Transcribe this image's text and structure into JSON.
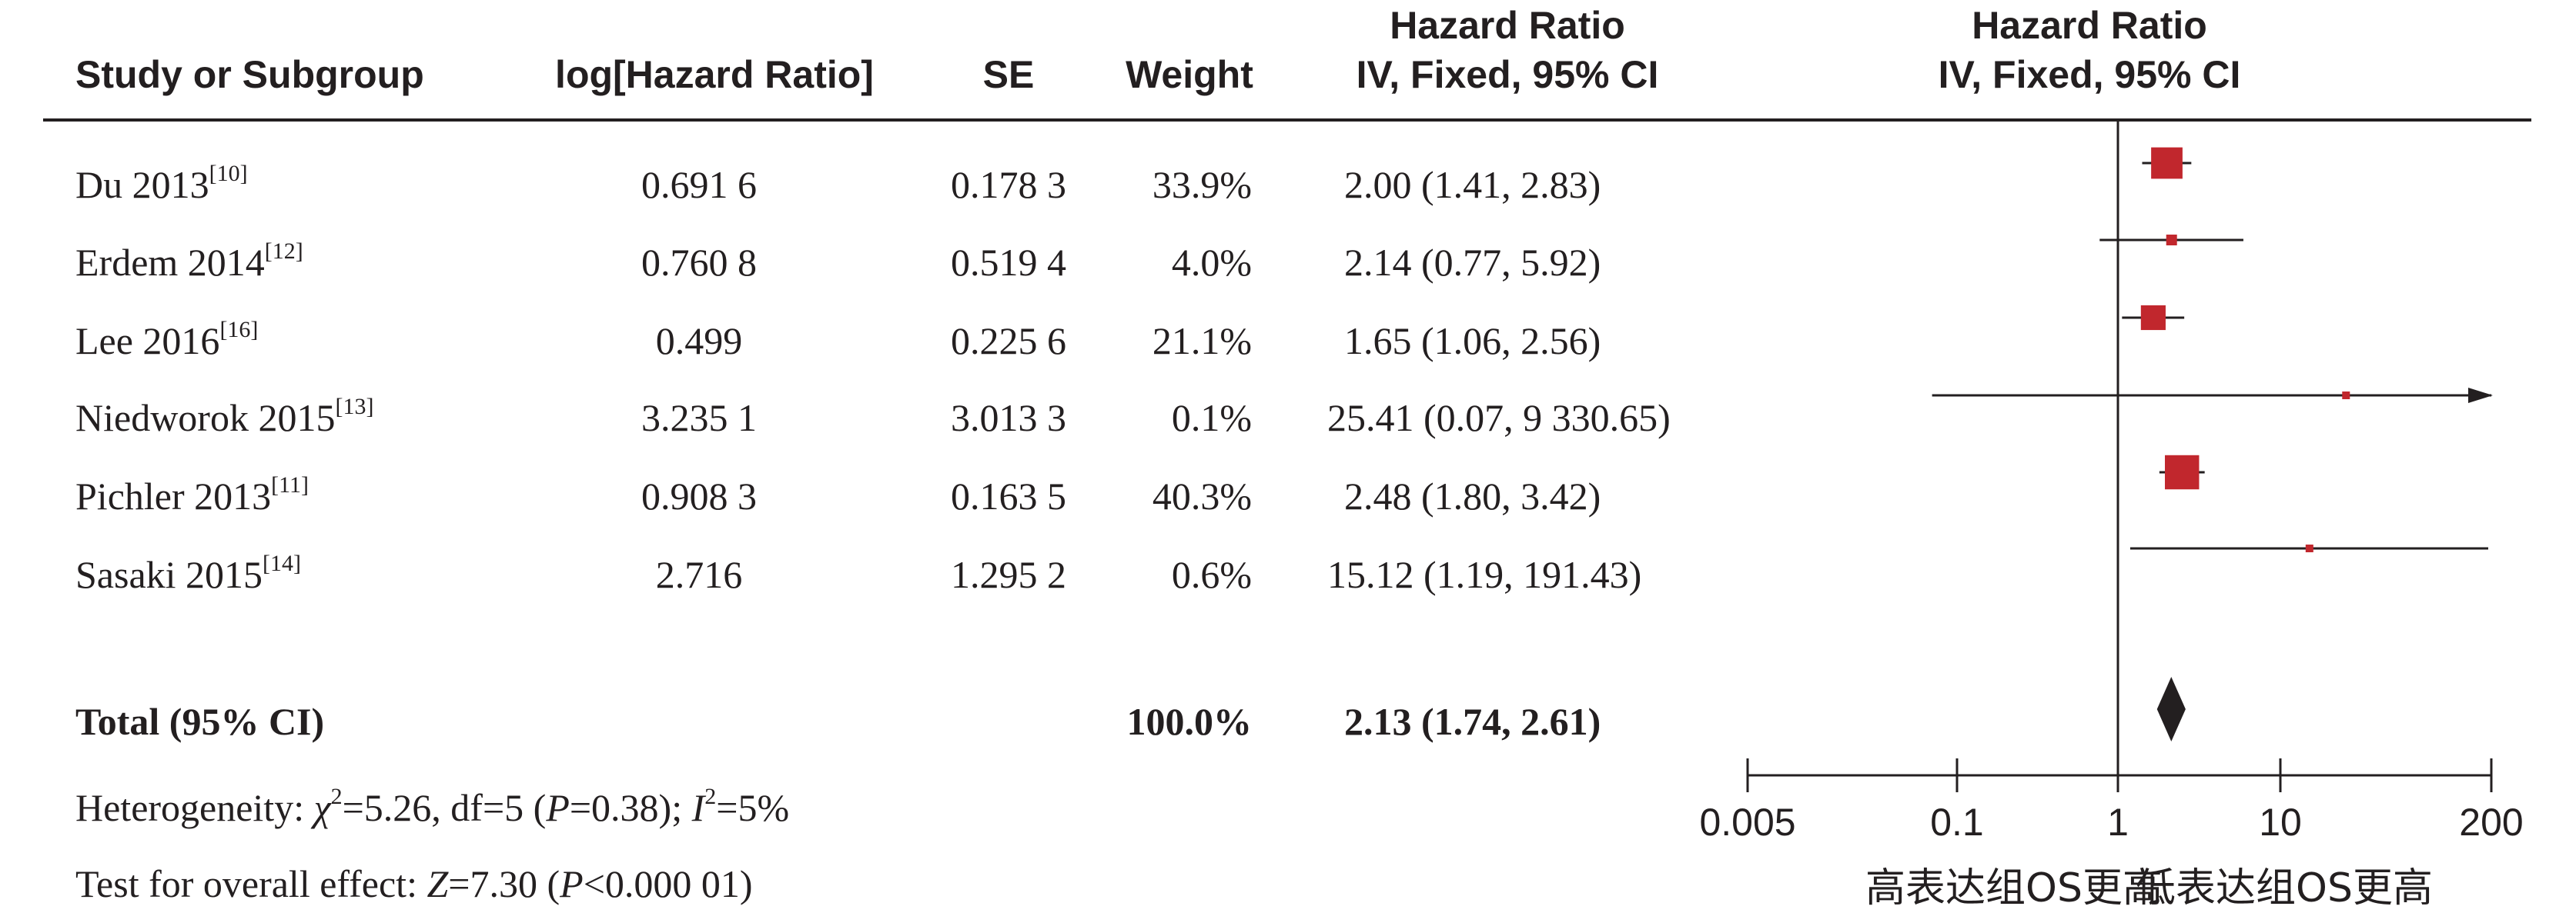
{
  "headers": {
    "study": "Study or Subgroup",
    "log_hr": "log[Hazard Ratio]",
    "se": "SE",
    "weight": "Weight",
    "hr_title": "Hazard Ratio",
    "hr_method": "IV, Fixed, 95% CI",
    "plot_title": "Hazard Ratio",
    "plot_method": "IV, Fixed, 95% CI"
  },
  "studies": [
    {
      "name": "Du 2013",
      "ref": "[10]",
      "log_hr": "0.691 6",
      "se": "0.178 3",
      "weight": "33.9%",
      "ci_text": "2.00 (1.41, 2.83)"
    },
    {
      "name": "Erdem 2014",
      "ref": "[12]",
      "log_hr": "0.760 8",
      "se": "0.519 4",
      "weight": "4.0%",
      "ci_text": "2.14 (0.77, 5.92)"
    },
    {
      "name": "Lee 2016",
      "ref": "[16]",
      "log_hr": "0.499",
      "se": "0.225 6",
      "weight": "21.1%",
      "ci_text": "1.65 (1.06, 2.56)"
    },
    {
      "name": "Niedworok 2015",
      "ref": "[13]",
      "log_hr": "3.235 1",
      "se": "3.013 3",
      "weight": "0.1%",
      "ci_text": "25.41 (0.07, 9 330.65)"
    },
    {
      "name": "Pichler 2013",
      "ref": "[11]",
      "log_hr": "0.908 3",
      "se": "0.163 5",
      "weight": "40.3%",
      "ci_text": "2.48 (1.80, 3.42)"
    },
    {
      "name": "Sasaki 2015",
      "ref": "[14]",
      "log_hr": "2.716",
      "se": "1.295 2",
      "weight": "0.6%",
      "ci_text": "15.12 (1.19, 191.43)"
    }
  ],
  "total": {
    "label": "Total (95% CI)",
    "weight": "100.0%",
    "ci_text": "2.13 (1.74, 2.61)"
  },
  "heterogeneity": {
    "prefix": "Heterogeneity: ",
    "chi_symbol": "χ",
    "chi_sup": "2",
    "chi_rest": "=5.26, df=5 (",
    "p_symbol": "P",
    "p_rest": "=0.38); ",
    "i_symbol": "I",
    "i_sup": "2",
    "i_rest": "=5%"
  },
  "overall_effect": {
    "prefix": "Test for overall effect: ",
    "z_symbol": "Z",
    "z_rest": "=7.30 (",
    "p_symbol": "P",
    "p_rest": "<0.000 01)"
  },
  "colors": {
    "marker": "#c1272d",
    "diamond": "#231f20",
    "text": "#231f20"
  },
  "chart_data": {
    "type": "forest",
    "x_scale": "log",
    "xlim": [
      0.005,
      200
    ],
    "x_ticks": [
      0.005,
      0.1,
      1,
      10,
      200
    ],
    "x_tick_labels": [
      "0.005",
      "0.1",
      "1",
      "10",
      "200"
    ],
    "reference_line": 1,
    "direction_labels": {
      "left": "高表达组OS更高",
      "right": "低表达组OS更高"
    },
    "studies": [
      {
        "hr": 2.0,
        "lower": 1.41,
        "upper": 2.83,
        "weight": 33.9
      },
      {
        "hr": 2.14,
        "lower": 0.77,
        "upper": 5.92,
        "weight": 4.0
      },
      {
        "hr": 1.65,
        "lower": 1.06,
        "upper": 2.56,
        "weight": 21.1
      },
      {
        "hr": 25.41,
        "lower": 0.07,
        "upper": 9330.65,
        "weight": 0.1
      },
      {
        "hr": 2.48,
        "lower": 1.8,
        "upper": 3.42,
        "weight": 40.3
      },
      {
        "hr": 15.12,
        "lower": 1.19,
        "upper": 191.43,
        "weight": 0.6
      }
    ],
    "total": {
      "hr": 2.13,
      "lower": 1.74,
      "upper": 2.61
    }
  }
}
